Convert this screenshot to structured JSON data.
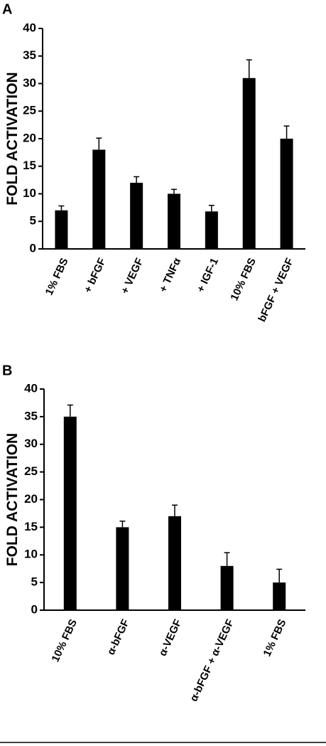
{
  "chart_data": [
    {
      "type": "bar",
      "panel": "A",
      "y_label": "FOLD ACTIVATION",
      "categories": [
        "1% FBS",
        "+ bFGF",
        "+ VEGF",
        "+ TNFα",
        "+ IGF-1",
        "10% FBS",
        "bFGF + VEGF"
      ],
      "values": [
        7,
        18,
        12,
        10,
        6.8,
        31,
        20
      ],
      "errors": [
        0.8,
        2.1,
        1.1,
        0.8,
        1.1,
        3.3,
        2.3
      ],
      "color": "#000000",
      "ylim": [
        0,
        40
      ],
      "yticks": [
        0,
        5,
        10,
        15,
        20,
        25,
        30,
        35,
        40
      ]
    },
    {
      "type": "bar",
      "panel": "B",
      "y_label": "FOLD ACTIVATION",
      "categories": [
        "10% FBS",
        "α-bFGF",
        "α-VEGF",
        "α-bFGF + α-VEGF",
        "1% FBS"
      ],
      "values": [
        35,
        15,
        17,
        8,
        5
      ],
      "errors": [
        2.1,
        1.1,
        2,
        2.4,
        2.4
      ],
      "color": "#000000",
      "ylim": [
        0,
        40
      ],
      "yticks": [
        0,
        5,
        10,
        15,
        20,
        25,
        30,
        35,
        40
      ]
    }
  ]
}
